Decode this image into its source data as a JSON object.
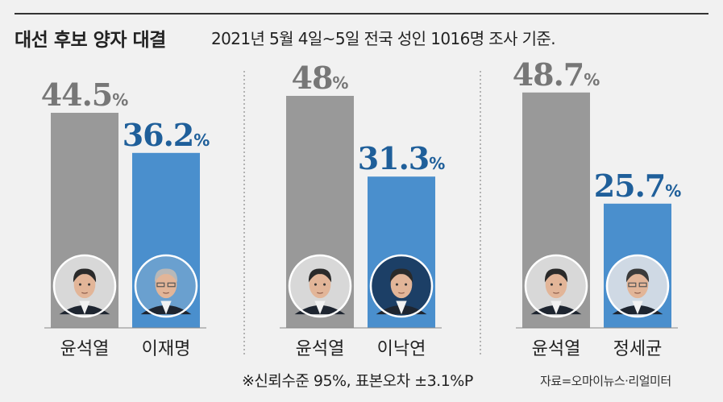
{
  "header": {
    "title": "대선 후보 양자 대결",
    "subtitle": "2021년 5월 4일~5일 전국 성인 1016명 조사 기준."
  },
  "footer": {
    "note": "※신뢰수준 95%, 표본오차 ±3.1%P",
    "source": "자료=오마이뉴스·리얼미터"
  },
  "colors": {
    "gray_bar": "#999999",
    "blue_bar": "#4a8fcd",
    "gray_text": "#777777",
    "blue_text": "#1f5f9a"
  },
  "chart_data": [
    {
      "type": "bar",
      "categories": [
        "윤석열",
        "이재명"
      ],
      "values": [
        44.5,
        36.2
      ],
      "value_labels": [
        "44.5",
        "36.2"
      ],
      "unit": "%"
    },
    {
      "type": "bar",
      "categories": [
        "윤석열",
        "이낙연"
      ],
      "values": [
        48,
        31.3
      ],
      "value_labels": [
        "48",
        "31.3"
      ],
      "unit": "%"
    },
    {
      "type": "bar",
      "categories": [
        "윤석열",
        "정세균"
      ],
      "values": [
        48.7,
        25.7
      ],
      "value_labels": [
        "48.7",
        "25.7"
      ],
      "unit": "%"
    }
  ]
}
